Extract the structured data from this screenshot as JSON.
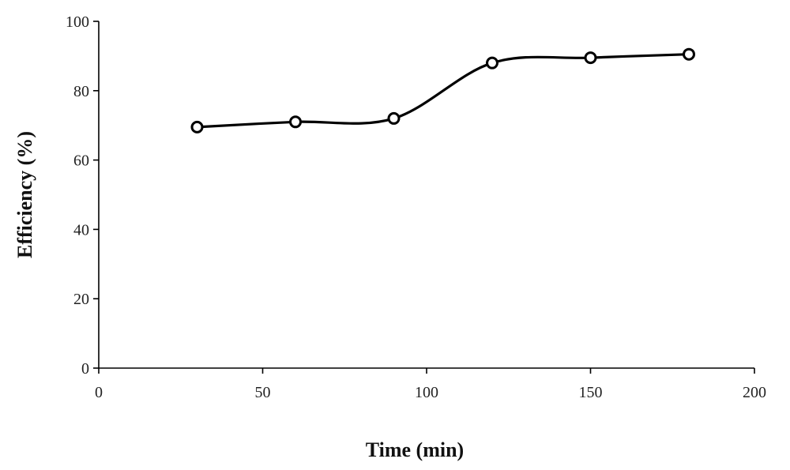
{
  "chart_data": {
    "type": "line",
    "title": "",
    "xlabel": "Time (min)",
    "ylabel": "Efficiency (%)",
    "xlim": [
      0,
      200
    ],
    "ylim": [
      0,
      100
    ],
    "x_ticks": [
      0,
      50,
      100,
      150,
      200
    ],
    "y_ticks": [
      0,
      20,
      40,
      60,
      80,
      100
    ],
    "x_tick_labels": [
      "0",
      "50",
      "100",
      "150",
      "200"
    ],
    "y_tick_labels": [
      "0",
      "20",
      "40",
      "60",
      "80",
      "100"
    ],
    "grid": false,
    "legend": "none",
    "smooth": true,
    "marker": "open-circle",
    "series": [
      {
        "color": "#000000",
        "x": [
          30,
          60,
          90,
          120,
          150,
          180
        ],
        "y": [
          69.5,
          71,
          72,
          88,
          89.5,
          90.5
        ]
      }
    ]
  }
}
